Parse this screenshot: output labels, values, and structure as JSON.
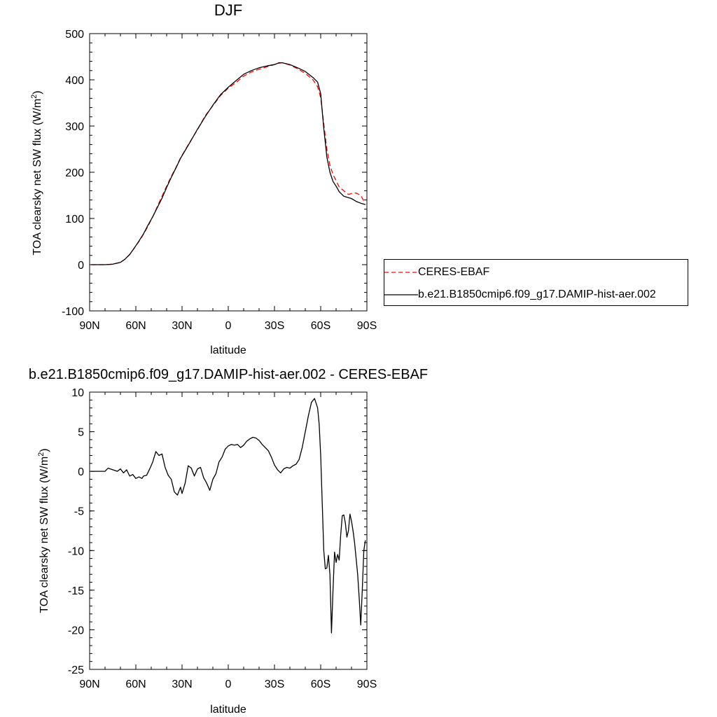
{
  "chart_data": [
    {
      "type": "line",
      "title": "DJF",
      "xlabel": "latitude",
      "ylabel_main": "TOA clearsky net SW flux (W/m",
      "ylabel_sup": "2",
      "ylabel_close": ")",
      "xlim": [
        90,
        -90
      ],
      "ylim": [
        -100,
        500
      ],
      "x_ticks": [
        90,
        60,
        30,
        0,
        -30,
        -60,
        -90
      ],
      "x_tick_labels": [
        "90N",
        "60N",
        "30N",
        "0",
        "30S",
        "60S",
        "90S"
      ],
      "y_ticks": [
        -100,
        0,
        100,
        200,
        300,
        400,
        500
      ],
      "y_tick_labels": [
        "-100",
        "0",
        "100",
        "200",
        "300",
        "400",
        "500"
      ],
      "legend_position": "right",
      "series": [
        {
          "name": "CERES-EBAF",
          "color": "#ff0000",
          "dash": true,
          "x": [
            89,
            85,
            80,
            75,
            70,
            67,
            64,
            61,
            58,
            55,
            52,
            49,
            46,
            43,
            40,
            37,
            34,
            31,
            28,
            25,
            20,
            15,
            10,
            5,
            0,
            -5,
            -10,
            -15,
            -20,
            -25,
            -30,
            -33,
            -35,
            -40,
            -45,
            -50,
            -55,
            -58,
            -60,
            -62,
            -64,
            -66,
            -68,
            -70,
            -72,
            -75,
            -78,
            -80,
            -83,
            -86,
            -88,
            -89
          ],
          "y": [
            0,
            0,
            0,
            1,
            5,
            12,
            22,
            36,
            50,
            66,
            84,
            104,
            126,
            148,
            170,
            191,
            210,
            231,
            248,
            265,
            292,
            322,
            344,
            366,
            382,
            394,
            408,
            417,
            423,
            428,
            433,
            436,
            437,
            432,
            424,
            414,
            400,
            385,
            362,
            305,
            250,
            215,
            195,
            182,
            168,
            160,
            152,
            154,
            155,
            150,
            138,
            138
          ]
        },
        {
          "name": "b.e21.B1850cmip6.f09_g17.DAMIP-hist-aer.002",
          "color": "#000000",
          "dash": false,
          "x": [
            89,
            85,
            80,
            75,
            70,
            67,
            64,
            61,
            58,
            55,
            52,
            49,
            46,
            43,
            40,
            37,
            34,
            31,
            28,
            25,
            20,
            15,
            10,
            5,
            0,
            -5,
            -10,
            -15,
            -20,
            -25,
            -30,
            -33,
            -35,
            -40,
            -45,
            -50,
            -55,
            -58,
            -60,
            -62,
            -64,
            -66,
            -68,
            -70,
            -72,
            -75,
            -78,
            -80,
            -83,
            -86,
            -88,
            -89
          ],
          "y": [
            0,
            0,
            0,
            1,
            5,
            12,
            22,
            36,
            51,
            67,
            86,
            104,
            124,
            144,
            167,
            189,
            209,
            230,
            247,
            264,
            293,
            320,
            345,
            368,
            384,
            398,
            412,
            420,
            426,
            430,
            433,
            437,
            437,
            433,
            426,
            418,
            405,
            395,
            370,
            295,
            233,
            200,
            180,
            170,
            158,
            148,
            145,
            143,
            137,
            133,
            131,
            130
          ]
        }
      ]
    },
    {
      "type": "line",
      "title": "b.e21.B1850cmip6.f09_g17.DAMIP-hist-aer.002 - CERES-EBAF",
      "xlabel": "latitude",
      "ylabel_main": "TOA clearsky net SW flux (W/m",
      "ylabel_sup": "2",
      "ylabel_close": ")",
      "xlim": [
        90,
        -90
      ],
      "ylim": [
        -25,
        10
      ],
      "x_ticks": [
        90,
        60,
        30,
        0,
        -30,
        -60,
        -90
      ],
      "x_tick_labels": [
        "90N",
        "60N",
        "30N",
        "0",
        "30S",
        "60S",
        "90S"
      ],
      "y_ticks": [
        -25,
        -20,
        -15,
        -10,
        -5,
        0,
        5,
        10
      ],
      "y_tick_labels": [
        "-25",
        "-20",
        "-15",
        "-10",
        "-5",
        "0",
        "5",
        "10"
      ],
      "series": [
        {
          "name": "",
          "color": "#000000",
          "dash": false,
          "x": [
            89,
            85,
            80,
            78,
            75,
            72,
            70,
            68,
            66,
            64,
            62,
            60,
            58,
            56,
            55,
            53,
            51,
            49,
            47,
            45,
            43,
            41,
            39,
            37,
            35,
            33,
            31,
            30,
            28,
            26,
            24,
            22,
            20,
            18,
            16,
            14,
            12,
            10,
            8,
            6,
            4,
            2,
            0,
            -2,
            -4,
            -6,
            -8,
            -10,
            -12,
            -14,
            -16,
            -18,
            -20,
            -22,
            -24,
            -26,
            -28,
            -30,
            -32,
            -34,
            -36,
            -38,
            -40,
            -42,
            -44,
            -46,
            -48,
            -50,
            -52,
            -54,
            -56,
            -58,
            -59,
            -60,
            -61,
            -62,
            -63,
            -64,
            -65,
            -66,
            -67,
            -68,
            -69,
            -70,
            -71,
            -72,
            -73,
            -74,
            -75,
            -76,
            -77,
            -78,
            -79,
            -80,
            -81,
            -82,
            -83,
            -84,
            -85,
            -86,
            -87,
            -88,
            -89
          ],
          "y": [
            0,
            0,
            0,
            0.4,
            0.2,
            0,
            0.3,
            -0.2,
            0.2,
            -0.6,
            -0.4,
            -0.9,
            -0.7,
            -0.9,
            -0.6,
            -0.5,
            0.3,
            1.2,
            2.5,
            2.0,
            2.2,
            0.5,
            -0.5,
            -1.0,
            -2.6,
            -3.0,
            -2.0,
            -2.8,
            -1.5,
            0.7,
            0.4,
            -0.6,
            0.3,
            0.5,
            -0.8,
            -1.5,
            -2.4,
            -1.0,
            -0.3,
            1.2,
            1.8,
            2.8,
            3.2,
            3.4,
            3.3,
            3.4,
            3.0,
            3.3,
            3.8,
            4.1,
            4.3,
            4.2,
            3.9,
            3.4,
            3.0,
            2.6,
            1.8,
            0.8,
            0.2,
            -0.2,
            0.3,
            0.5,
            0.4,
            0.7,
            0.9,
            1.5,
            3.0,
            5.0,
            7.0,
            8.7,
            9.2,
            8.0,
            6.0,
            2.0,
            -4.0,
            -10.0,
            -12.3,
            -12.2,
            -10.6,
            -13.0,
            -20.4,
            -15.0,
            -10.2,
            -11.5,
            -10.5,
            -11.2,
            -8.0,
            -5.6,
            -5.5,
            -6.5,
            -8.3,
            -7.5,
            -5.4,
            -6.3,
            -7.5,
            -9.0,
            -11.0,
            -13.0,
            -16.0,
            -19.4,
            -15.0,
            -10.0,
            -8.7
          ]
        }
      ]
    }
  ]
}
